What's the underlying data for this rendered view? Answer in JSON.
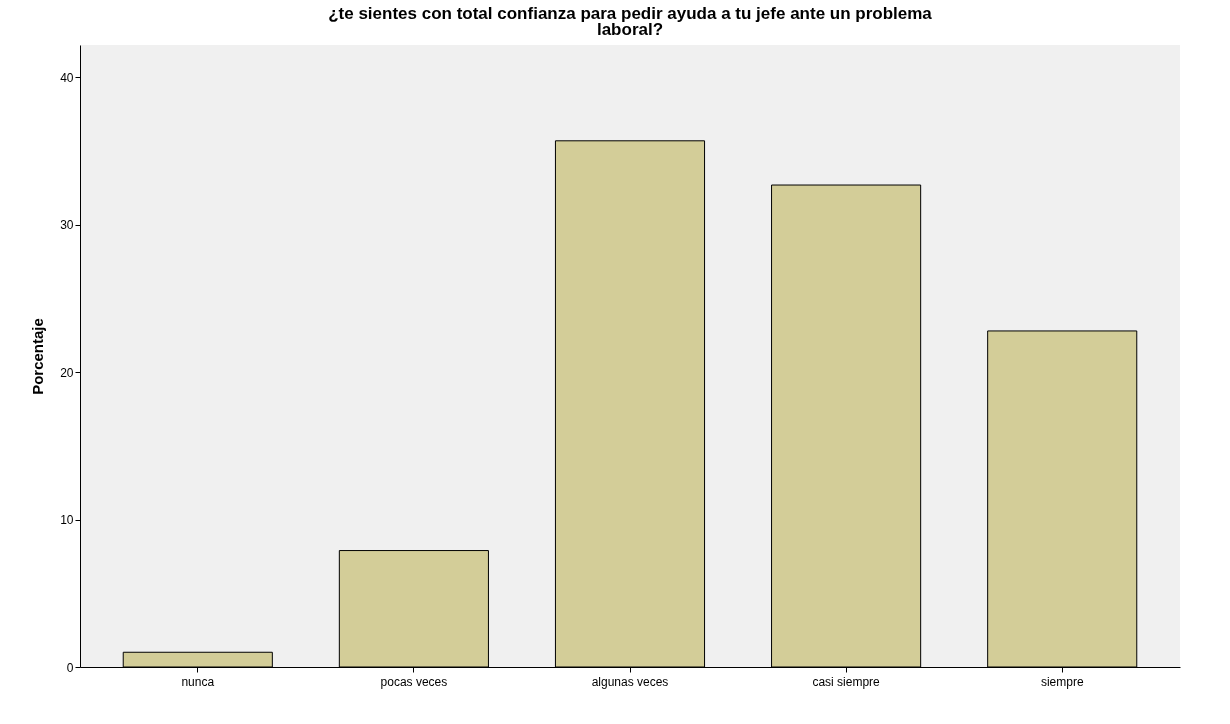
{
  "chart_data": {
    "type": "bar",
    "title": "¿te sientes con total confianza para pedir ayuda a tu jefe ante un problema laboral?",
    "ylabel": "Porcentaje",
    "categories": [
      "nunca",
      "pocas veces",
      "algunas veces",
      "casi siempre",
      "siempre"
    ],
    "values": [
      1.0,
      7.9,
      35.7,
      32.7,
      22.8
    ],
    "color": "#d3cd98",
    "ylim": [
      0,
      42.2
    ],
    "yticks": [
      0,
      10,
      20,
      30,
      40
    ],
    "grid": false
  }
}
